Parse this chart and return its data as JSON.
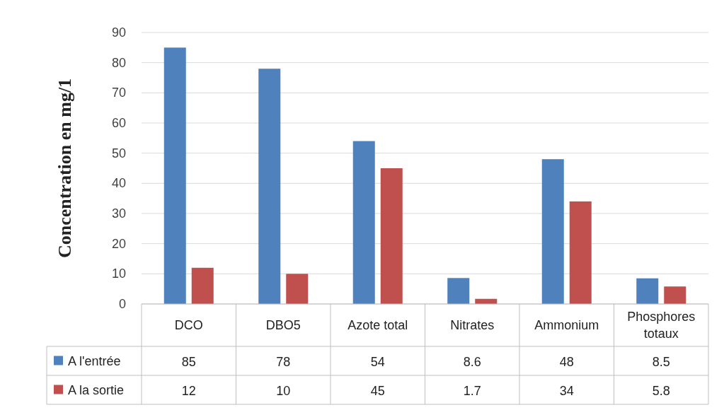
{
  "chart_data": {
    "type": "bar",
    "ylabel": "Concentration en mg/1",
    "categories": [
      "DCO",
      "DBO5",
      "Azote total",
      "Nitrates",
      "Ammonium",
      "Phosphores totaux"
    ],
    "series": [
      {
        "name": "A l'entrée",
        "color": "#4f81bd",
        "values": [
          85,
          78,
          54,
          8.6,
          48,
          8.5
        ]
      },
      {
        "name": "A la sortie",
        "color": "#c0504d",
        "values": [
          12,
          10,
          45,
          1.7,
          34,
          5.8
        ]
      }
    ],
    "ylim": [
      0,
      90
    ],
    "yticks": [
      0,
      10,
      20,
      30,
      40,
      50,
      60,
      70,
      80,
      90
    ],
    "grid": "y",
    "legend": "bottom left",
    "data_labels": true
  }
}
